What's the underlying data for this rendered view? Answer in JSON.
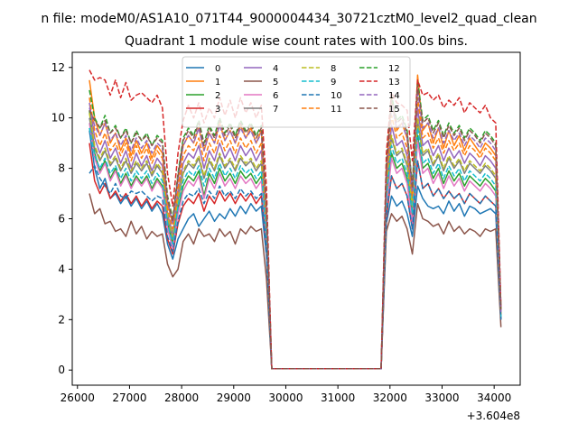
{
  "chart_data": {
    "type": "line",
    "suptitle": "n file: modeM0/AS1A10_071T44_9000004434_30721cztM0_level2_quad_clean",
    "title": "Quadrant 1 module wise count rates with 100.0s bins.",
    "xlabel": "",
    "ylabel": "",
    "x_offset_label": "+3.604e8",
    "xlim": [
      25900,
      34500
    ],
    "ylim": [
      -0.6,
      12.6
    ],
    "x_ticks": [
      26000,
      27000,
      28000,
      29000,
      30000,
      31000,
      32000,
      33000,
      34000
    ],
    "x_tick_labels": [
      "26000",
      "27000",
      "28000",
      "29000",
      "30000",
      "31000",
      "32000",
      "33000",
      "34000"
    ],
    "y_ticks": [
      0,
      2,
      4,
      6,
      8,
      10,
      12
    ],
    "y_tick_labels": [
      "0",
      "2",
      "4",
      "6",
      "8",
      "10",
      "12"
    ],
    "grid": false,
    "legend_placement": "top-center",
    "legend_columns": 4,
    "x": [
      26230,
      26330,
      26430,
      26530,
      26630,
      26730,
      26830,
      26930,
      27030,
      27130,
      27230,
      27330,
      27430,
      27530,
      27630,
      27730,
      27830,
      27930,
      28030,
      28130,
      28230,
      28330,
      28430,
      28530,
      28630,
      28730,
      28830,
      28930,
      29030,
      29130,
      29230,
      29330,
      29430,
      29530,
      29630,
      29730,
      29830,
      31830,
      31930,
      32030,
      32130,
      32230,
      32330,
      32430,
      32530,
      32630,
      32730,
      32830,
      32930,
      33030,
      33130,
      33230,
      33330,
      33430,
      33530,
      33630,
      33730,
      33830,
      33930,
      34030,
      34130
    ],
    "series": [
      {
        "name": "0",
        "color": "#1f77b4",
        "style": "solid",
        "values": [
          9.5,
          8.0,
          7.2,
          7.6,
          6.8,
          7.0,
          6.6,
          6.9,
          6.5,
          6.8,
          6.4,
          6.7,
          6.3,
          6.6,
          6.2,
          5.0,
          4.4,
          5.2,
          5.6,
          6.0,
          6.2,
          5.7,
          6.0,
          6.3,
          5.9,
          6.2,
          6.0,
          6.4,
          6.1,
          6.5,
          6.2,
          6.6,
          6.3,
          6.5,
          4.5,
          0.05,
          0.05,
          0.05,
          5.8,
          6.9,
          6.5,
          6.7,
          6.2,
          5.3,
          7.3,
          6.8,
          6.5,
          6.4,
          6.5,
          6.2,
          6.7,
          6.3,
          6.6,
          6.1,
          6.5,
          6.4,
          6.2,
          6.3,
          6.4,
          6.2,
          2.0
        ]
      },
      {
        "name": "1",
        "color": "#ff7f0e",
        "style": "solid",
        "values": [
          11.5,
          10.0,
          9.3,
          9.8,
          9.0,
          9.4,
          8.7,
          9.2,
          8.5,
          9.1,
          8.6,
          9.0,
          8.4,
          8.9,
          8.6,
          6.6,
          5.8,
          7.5,
          8.9,
          9.3,
          9.0,
          9.6,
          8.7,
          9.4,
          9.0,
          9.8,
          9.1,
          9.5,
          9.0,
          9.7,
          9.2,
          9.6,
          9.0,
          9.5,
          6.0,
          0.05,
          0.05,
          0.05,
          7.9,
          10.8,
          9.5,
          9.8,
          9.2,
          7.0,
          11.7,
          9.5,
          9.8,
          9.0,
          9.6,
          8.8,
          9.5,
          8.9,
          9.3,
          8.7,
          9.2,
          8.9,
          8.6,
          9.0,
          8.8,
          8.5,
          2.3
        ]
      },
      {
        "name": "2",
        "color": "#2ca02c",
        "style": "solid",
        "values": [
          10.3,
          8.6,
          7.9,
          8.3,
          7.6,
          8.0,
          7.4,
          7.8,
          7.3,
          7.7,
          7.4,
          7.7,
          7.2,
          7.6,
          7.3,
          5.8,
          5.0,
          6.4,
          7.3,
          7.7,
          7.5,
          7.9,
          6.9,
          7.8,
          7.4,
          8.0,
          7.5,
          7.8,
          7.4,
          7.9,
          7.6,
          7.8,
          7.4,
          7.7,
          5.2,
          0.05,
          0.05,
          0.05,
          6.6,
          8.6,
          8.0,
          8.2,
          7.6,
          6.0,
          9.3,
          8.0,
          8.2,
          7.6,
          8.0,
          7.4,
          7.9,
          7.5,
          7.8,
          7.3,
          7.7,
          7.5,
          7.3,
          7.6,
          7.4,
          7.1,
          2.1
        ]
      },
      {
        "name": "3",
        "color": "#d62728",
        "style": "solid",
        "values": [
          9.0,
          7.5,
          7.0,
          7.4,
          6.8,
          7.1,
          6.7,
          7.0,
          6.6,
          6.9,
          6.5,
          6.8,
          6.4,
          6.7,
          6.5,
          5.2,
          4.6,
          5.8,
          6.5,
          6.8,
          6.6,
          7.0,
          6.3,
          6.9,
          6.6,
          7.1,
          6.7,
          7.0,
          6.6,
          7.0,
          6.7,
          7.0,
          6.6,
          6.9,
          4.8,
          0.05,
          0.05,
          0.05,
          6.0,
          7.7,
          7.2,
          7.4,
          6.9,
          5.6,
          8.3,
          7.2,
          7.4,
          6.9,
          7.2,
          6.8,
          7.1,
          6.8,
          7.0,
          6.6,
          7.0,
          6.8,
          6.6,
          6.9,
          6.7,
          6.5,
          2.0
        ]
      },
      {
        "name": "4",
        "color": "#9467bd",
        "style": "solid",
        "values": [
          10.6,
          9.2,
          8.6,
          9.1,
          8.4,
          8.8,
          8.2,
          8.7,
          8.0,
          8.6,
          8.1,
          8.5,
          7.9,
          8.4,
          8.1,
          6.2,
          5.4,
          7.0,
          8.2,
          8.6,
          8.4,
          8.9,
          8.0,
          8.7,
          8.3,
          9.0,
          8.4,
          8.8,
          8.3,
          8.9,
          8.5,
          8.8,
          8.3,
          8.7,
          5.8,
          0.05,
          0.05,
          0.05,
          7.4,
          9.7,
          8.9,
          9.1,
          8.5,
          6.7,
          10.4,
          8.9,
          9.1,
          8.5,
          8.9,
          8.3,
          8.8,
          8.4,
          8.7,
          8.2,
          8.6,
          8.4,
          8.1,
          8.5,
          8.3,
          8.0,
          2.2
        ]
      },
      {
        "name": "5",
        "color": "#8c564b",
        "style": "solid",
        "values": [
          7.0,
          6.2,
          6.4,
          5.8,
          5.9,
          5.5,
          5.6,
          5.3,
          5.9,
          5.4,
          5.7,
          5.2,
          5.5,
          5.3,
          5.4,
          4.2,
          3.7,
          4.0,
          5.1,
          5.4,
          5.0,
          5.6,
          5.3,
          5.4,
          5.1,
          5.6,
          5.3,
          5.5,
          5.0,
          5.6,
          5.4,
          5.7,
          5.5,
          5.6,
          3.6,
          0.05,
          0.05,
          0.05,
          5.5,
          6.2,
          5.9,
          6.1,
          5.6,
          4.6,
          6.6,
          6.0,
          5.9,
          5.7,
          5.8,
          5.4,
          5.9,
          5.5,
          5.7,
          5.4,
          5.6,
          5.5,
          5.3,
          5.6,
          5.5,
          5.6,
          1.7
        ]
      },
      {
        "name": "6",
        "color": "#e377c2",
        "style": "solid",
        "values": [
          9.8,
          8.4,
          7.8,
          8.2,
          7.5,
          7.9,
          7.3,
          7.7,
          7.2,
          7.6,
          7.3,
          7.6,
          7.1,
          7.5,
          7.2,
          5.6,
          4.8,
          6.2,
          7.1,
          7.5,
          7.3,
          7.7,
          6.8,
          7.6,
          7.2,
          7.8,
          7.3,
          7.6,
          7.2,
          7.7,
          7.4,
          7.6,
          7.2,
          7.5,
          5.0,
          0.05,
          0.05,
          0.05,
          6.4,
          8.4,
          7.8,
          8.0,
          7.4,
          5.8,
          9.1,
          7.8,
          8.0,
          7.4,
          7.8,
          7.2,
          7.7,
          7.3,
          7.6,
          7.1,
          7.5,
          7.3,
          7.1,
          7.4,
          7.2,
          6.9,
          2.1
        ]
      },
      {
        "name": "7",
        "color": "#7f7f7f",
        "style": "solid",
        "values": [
          10.0,
          8.8,
          8.3,
          8.7,
          8.1,
          8.4,
          7.9,
          8.3,
          7.8,
          8.2,
          7.9,
          8.2,
          7.7,
          8.1,
          7.8,
          6.0,
          5.2,
          6.7,
          7.8,
          8.2,
          8.0,
          8.4,
          7.6,
          8.3,
          7.9,
          8.5,
          8.0,
          8.3,
          7.9,
          8.4,
          8.1,
          8.3,
          7.9,
          8.2,
          5.5,
          0.05,
          0.05,
          0.05,
          7.0,
          9.2,
          8.5,
          8.7,
          8.1,
          6.4,
          9.9,
          8.5,
          8.7,
          8.1,
          8.5,
          7.9,
          8.4,
          8.0,
          8.3,
          7.8,
          8.2,
          8.0,
          7.8,
          8.1,
          7.9,
          7.6,
          2.2
        ]
      },
      {
        "name": "8",
        "color": "#bcbd22",
        "style": "dashed",
        "values": [
          10.2,
          8.9,
          8.4,
          8.8,
          8.2,
          8.5,
          8.0,
          8.4,
          7.9,
          8.3,
          8.0,
          8.3,
          7.8,
          8.2,
          7.9,
          6.1,
          5.3,
          6.8,
          7.9,
          8.3,
          8.1,
          8.5,
          7.7,
          8.4,
          8.0,
          8.6,
          8.1,
          8.4,
          8.0,
          8.5,
          8.2,
          8.4,
          8.0,
          8.3,
          5.6,
          0.05,
          0.05,
          0.05,
          7.1,
          9.3,
          8.6,
          8.8,
          8.2,
          6.5,
          10.0,
          8.6,
          8.8,
          8.2,
          8.6,
          8.0,
          8.5,
          8.1,
          8.4,
          7.9,
          8.3,
          8.1,
          7.9,
          8.2,
          8.0,
          7.7,
          2.2
        ]
      },
      {
        "name": "9",
        "color": "#17becf",
        "style": "dashed",
        "values": [
          9.6,
          8.5,
          8.0,
          8.4,
          7.8,
          8.1,
          7.6,
          8.0,
          7.5,
          7.9,
          7.6,
          7.9,
          7.4,
          7.8,
          7.5,
          5.8,
          5.0,
          6.5,
          7.5,
          7.9,
          7.7,
          8.1,
          7.3,
          8.0,
          7.6,
          8.2,
          7.7,
          8.0,
          7.6,
          8.1,
          7.8,
          8.0,
          7.6,
          7.9,
          5.3,
          0.05,
          0.05,
          0.05,
          6.8,
          8.9,
          8.2,
          8.4,
          7.8,
          6.2,
          9.6,
          8.2,
          8.4,
          7.8,
          8.2,
          7.6,
          8.1,
          7.7,
          8.0,
          7.5,
          7.9,
          7.7,
          7.5,
          7.8,
          7.6,
          7.3,
          2.1
        ]
      },
      {
        "name": "10",
        "color": "#1f77b4",
        "style": "dashed",
        "values": [
          7.8,
          8.1,
          7.6,
          7.3,
          7.0,
          7.4,
          6.9,
          6.8,
          7.1,
          7.0,
          7.1,
          6.9,
          6.7,
          6.9,
          6.8,
          5.3,
          4.7,
          5.9,
          6.7,
          7.0,
          6.9,
          7.2,
          6.6,
          7.1,
          6.8,
          7.3,
          6.9,
          7.1,
          6.8,
          7.2,
          6.9,
          7.1,
          6.8,
          7.0,
          4.8,
          0.05,
          0.05,
          0.05,
          6.2,
          7.7,
          7.2,
          7.4,
          6.9,
          5.6,
          8.3,
          7.2,
          7.4,
          6.9,
          7.2,
          6.8,
          7.1,
          6.8,
          7.0,
          6.6,
          7.0,
          6.8,
          6.6,
          6.9,
          6.7,
          6.5,
          2.0
        ]
      },
      {
        "name": "11",
        "color": "#ff7f0e",
        "style": "dashed",
        "values": [
          10.8,
          9.5,
          8.9,
          9.4,
          8.7,
          9.0,
          8.5,
          9.0,
          8.3,
          8.9,
          8.4,
          8.8,
          8.2,
          8.7,
          8.4,
          6.4,
          5.6,
          7.2,
          8.5,
          8.9,
          8.7,
          9.2,
          8.3,
          9.0,
          8.6,
          9.3,
          8.7,
          9.1,
          8.6,
          9.2,
          8.8,
          9.1,
          8.6,
          9.0,
          6.0,
          0.05,
          0.05,
          0.05,
          7.6,
          10.1,
          9.2,
          9.4,
          8.8,
          6.9,
          10.8,
          9.2,
          9.4,
          8.8,
          9.2,
          8.6,
          9.1,
          8.7,
          9.0,
          8.5,
          8.9,
          8.7,
          8.4,
          8.8,
          8.6,
          8.3,
          2.3
        ]
      },
      {
        "name": "12",
        "color": "#2ca02c",
        "style": "dashed",
        "values": [
          11.1,
          10.0,
          9.6,
          10.1,
          9.4,
          9.7,
          9.2,
          9.6,
          9.0,
          9.5,
          9.1,
          9.4,
          8.9,
          9.3,
          9.1,
          6.9,
          6.0,
          7.8,
          9.2,
          9.6,
          9.3,
          9.9,
          9.0,
          9.7,
          9.3,
          10.0,
          9.4,
          9.8,
          9.3,
          9.9,
          9.5,
          9.8,
          9.3,
          9.7,
          6.5,
          0.05,
          0.05,
          0.05,
          8.2,
          10.9,
          9.9,
          10.1,
          9.5,
          7.3,
          11.5,
          9.9,
          10.1,
          9.5,
          9.9,
          9.3,
          9.8,
          9.4,
          9.7,
          9.2,
          9.6,
          9.4,
          9.1,
          9.5,
          9.3,
          9.0,
          2.4
        ]
      },
      {
        "name": "13",
        "color": "#d62728",
        "style": "dashed",
        "values": [
          11.9,
          11.5,
          11.6,
          11.5,
          10.9,
          11.5,
          10.8,
          11.4,
          10.7,
          10.9,
          11.0,
          10.8,
          10.6,
          10.9,
          10.4,
          7.8,
          6.5,
          8.6,
          9.9,
          10.5,
          10.0,
          10.6,
          9.8,
          10.4,
          10.0,
          10.8,
          10.1,
          10.7,
          10.0,
          10.8,
          10.2,
          10.6,
          10.0,
          10.5,
          7.2,
          0.05,
          0.05,
          0.05,
          8.6,
          11.0,
          10.6,
          10.5,
          10.3,
          8.3,
          11.5,
          10.9,
          11.0,
          10.7,
          10.9,
          10.4,
          10.7,
          10.5,
          10.8,
          10.2,
          10.6,
          10.4,
          10.2,
          10.5,
          10.0,
          9.8,
          2.5
        ]
      },
      {
        "name": "14",
        "color": "#9467bd",
        "style": "dashed",
        "values": [
          10.4,
          9.7,
          9.3,
          9.8,
          9.1,
          9.4,
          8.9,
          9.3,
          8.7,
          9.2,
          8.8,
          9.1,
          8.6,
          9.0,
          8.8,
          6.7,
          5.8,
          7.6,
          8.9,
          9.3,
          9.0,
          9.6,
          8.7,
          9.4,
          9.0,
          9.7,
          9.1,
          9.5,
          9.0,
          9.6,
          9.2,
          9.5,
          9.0,
          9.4,
          6.3,
          0.05,
          0.05,
          0.05,
          7.9,
          10.5,
          9.6,
          9.8,
          9.2,
          7.1,
          11.1,
          9.6,
          9.8,
          9.2,
          9.6,
          9.0,
          9.5,
          9.1,
          9.4,
          8.9,
          9.3,
          9.1,
          8.8,
          9.2,
          9.0,
          8.7,
          2.3
        ]
      },
      {
        "name": "15",
        "color": "#8c564b",
        "style": "dashed",
        "values": [
          10.3,
          9.9,
          9.6,
          9.9,
          9.4,
          9.6,
          9.2,
          9.5,
          9.0,
          9.4,
          9.1,
          9.3,
          8.9,
          9.2,
          9.0,
          6.8,
          5.9,
          7.7,
          9.1,
          9.5,
          9.2,
          9.8,
          8.9,
          9.6,
          9.2,
          9.9,
          9.3,
          9.7,
          9.2,
          9.8,
          9.4,
          9.7,
          9.2,
          9.6,
          6.4,
          0.05,
          0.05,
          0.05,
          8.0,
          10.7,
          9.8,
          10.0,
          9.4,
          7.2,
          11.3,
          9.8,
          10.0,
          9.4,
          9.8,
          9.2,
          9.7,
          9.3,
          9.6,
          9.1,
          9.5,
          9.3,
          9.0,
          9.4,
          9.2,
          8.9,
          2.4
        ]
      }
    ]
  }
}
